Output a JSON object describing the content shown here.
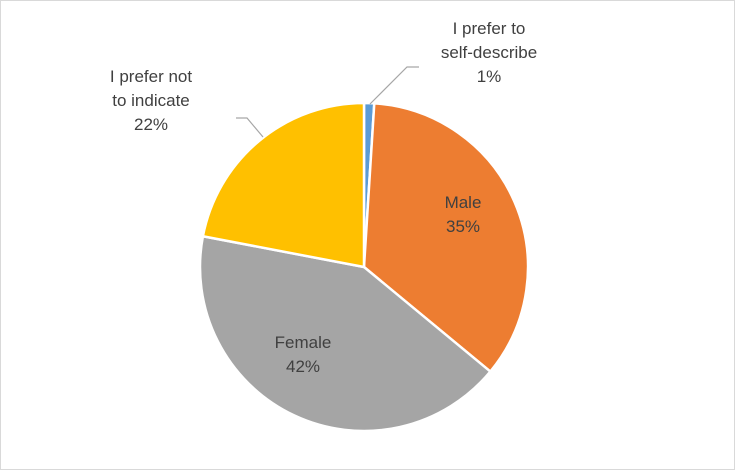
{
  "chart_data": {
    "type": "pie",
    "title": "",
    "slices": [
      {
        "label": "I prefer to self-describe",
        "label_lines": [
          "I prefer to",
          "self-describe"
        ],
        "value": 1,
        "pct_label": "1%",
        "color": "#5b9bd5"
      },
      {
        "label": "Male",
        "label_lines": [
          "Male"
        ],
        "value": 35,
        "pct_label": "35%",
        "color": "#ed7d31"
      },
      {
        "label": "Female",
        "label_lines": [
          "Female"
        ],
        "value": 42,
        "pct_label": "42%",
        "color": "#a5a5a5"
      },
      {
        "label": "I prefer not to indicate",
        "label_lines": [
          "I prefer not",
          "to indicate"
        ],
        "value": 22,
        "pct_label": "22%",
        "color": "#ffc000"
      }
    ],
    "legend": "none",
    "label_color": "#404040",
    "leader_color": "#a6a6a6"
  }
}
